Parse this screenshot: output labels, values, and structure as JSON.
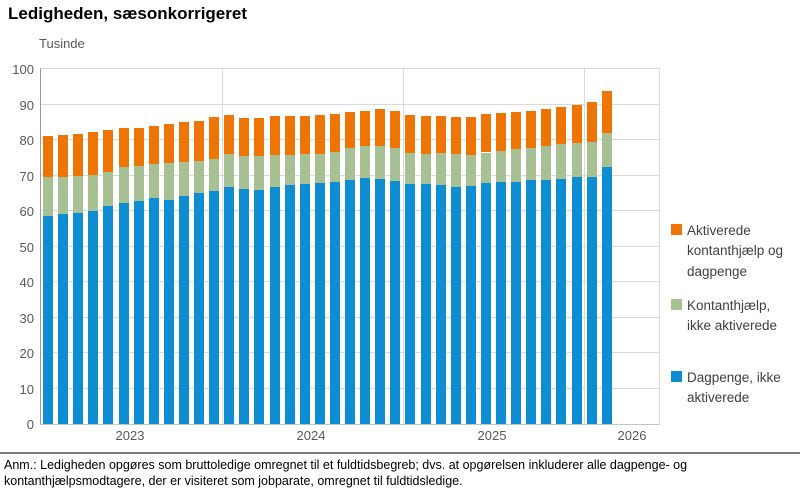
{
  "title": "Ledigheden, sæsonkorrigeret",
  "unit_label": "Tusinde",
  "footer": {
    "note": "Anm.: Ledigheden opgøres som bruttoledige omregnet til et fuldtidsbegreb; dvs. at opgørelsen inkluderer alle dagpenge- og kontanthjælpsmodtagere, der er visiteret som jobparate, omregnet til fuldtidsledige."
  },
  "colors": {
    "dagpenge_blue": "#0e8dd3",
    "kontanthjalp_green": "#a7c194",
    "aktiverede_orange": "#ee7503",
    "gridline": "#d9d9d9",
    "axis_text": "#595959",
    "legend_text": "#404040",
    "footer_rule": "#7a7a7a"
  },
  "legend": [
    {
      "label": "Aktiverede kontanthjælp og dagpenge",
      "color": "#ee7503"
    },
    {
      "label": "Kontanthjælp, ikke aktiverede",
      "color": "#a7c194"
    },
    {
      "label": "Dagpenge, ikke aktiverede",
      "color": "#0e8dd3"
    }
  ],
  "chart_data": {
    "type": "bar",
    "stacked": true,
    "title": "Ledigheden, sæsonkorrigeret",
    "ylabel": "Tusinde",
    "xlabel": "",
    "ylim": [
      0,
      100
    ],
    "ytick_step": 10,
    "grid": "horizontal",
    "legend_position": "right",
    "x_year_labels": [
      "2023",
      "2024",
      "2025",
      "2026"
    ],
    "months_per_year_section": [
      12,
      12,
      12,
      2
    ],
    "months": [
      "2023-01",
      "2023-02",
      "2023-03",
      "2023-04",
      "2023-05",
      "2023-06",
      "2023-07",
      "2023-08",
      "2023-09",
      "2023-10",
      "2023-11",
      "2023-12",
      "2024-01",
      "2024-02",
      "2024-03",
      "2024-04",
      "2024-05",
      "2024-06",
      "2024-07",
      "2024-08",
      "2024-09",
      "2024-10",
      "2024-11",
      "2024-12",
      "2025-01",
      "2025-02",
      "2025-03",
      "2025-04",
      "2025-05",
      "2025-06",
      "2025-07",
      "2025-08",
      "2025-09",
      "2025-10",
      "2025-11",
      "2025-12",
      "2026-01",
      "2026-02"
    ],
    "series": [
      {
        "name": "Dagpenge, ikke aktiverede",
        "color": "#0e8dd3",
        "values": [
          58.7,
          59.2,
          59.4,
          60.1,
          61.5,
          62.3,
          62.9,
          63.7,
          63.2,
          64.1,
          65.1,
          65.7,
          66.7,
          66.2,
          66.0,
          66.9,
          67.3,
          67.6,
          67.9,
          68.1,
          68.8,
          69.2,
          69.0,
          68.5,
          67.6,
          67.6,
          67.3,
          66.7,
          67.1,
          67.9,
          68.1,
          68.3,
          68.7,
          68.8,
          69.0,
          69.5,
          69.7,
          72.3
        ]
      },
      {
        "name": "Kontanthjælp, ikke aktiverede",
        "color": "#a7c194",
        "values": [
          10.8,
          10.5,
          10.5,
          10.1,
          9.4,
          10.0,
          9.9,
          9.5,
          10.3,
          9.6,
          9.1,
          8.9,
          9.3,
          9.4,
          9.6,
          8.8,
          8.5,
          8.4,
          8.1,
          8.4,
          9.1,
          9.0,
          9.4,
          9.4,
          8.7,
          8.4,
          9.0,
          9.3,
          8.8,
          8.6,
          8.9,
          9.2,
          9.2,
          9.6,
          9.9,
          9.7,
          9.8,
          9.7
        ]
      },
      {
        "name": "Aktiverede kontanthjælp og dagpenge",
        "color": "#ee7503",
        "values": [
          11.7,
          11.7,
          11.8,
          12.1,
          12.0,
          11.0,
          10.7,
          10.8,
          11.0,
          11.3,
          11.2,
          11.8,
          11.0,
          10.5,
          10.5,
          11.0,
          11.0,
          10.7,
          11.0,
          10.8,
          10.1,
          10.0,
          10.3,
          10.3,
          10.7,
          10.8,
          10.5,
          10.4,
          10.5,
          10.8,
          10.6,
          10.5,
          10.3,
          10.3,
          10.3,
          10.7,
          11.3,
          11.9
        ]
      }
    ]
  }
}
